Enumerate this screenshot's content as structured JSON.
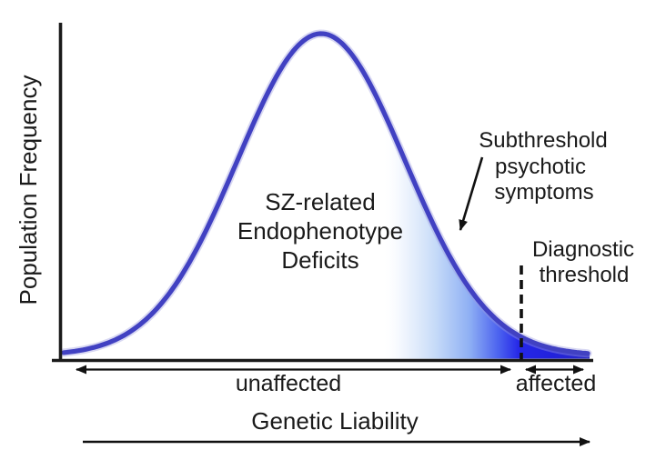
{
  "figure": {
    "y_axis_label": "Population Frequency",
    "x_axis_label": "Genetic Liability",
    "curve_label": {
      "lines": [
        "SZ-related",
        "Endophenotype",
        "Deficits"
      ]
    },
    "annotations": {
      "subthreshold": {
        "lines": [
          "Subthreshold",
          "psychotic",
          "symptoms"
        ]
      },
      "diagnostic": {
        "lines": [
          "Diagnostic",
          "threshold"
        ]
      }
    },
    "ranges": {
      "unaffected": "unaffected",
      "affected": "affected"
    },
    "curve": {
      "type": "normal-distribution-bell-curve",
      "shaded_region": "right tail shaded with white-to-blue gradient, deepest blue at and beyond the dashed diagnostic threshold line"
    },
    "colors": {
      "curve_stroke": "#4141c2",
      "tail_fill_deep": "#2527e8",
      "ink": "#1a1a1a"
    }
  }
}
